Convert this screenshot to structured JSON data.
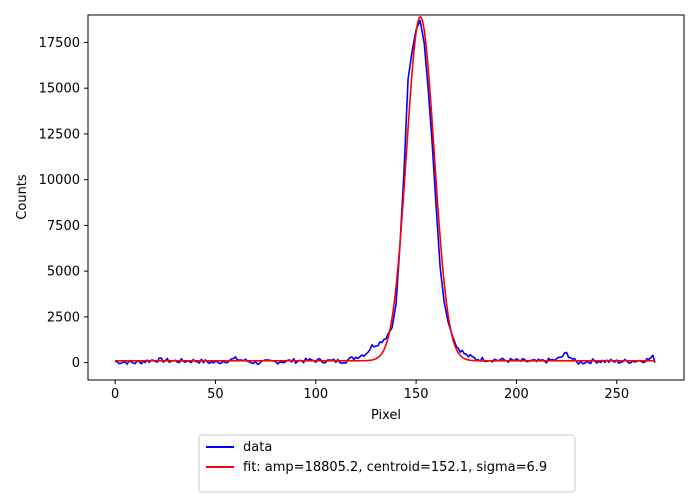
{
  "chart_data": {
    "type": "line",
    "title": "",
    "xlabel": "Pixel",
    "ylabel": "Counts",
    "xlim": [
      -13.5,
      283.5
    ],
    "ylim": [
      -950,
      19000
    ],
    "xticks": [
      0,
      50,
      100,
      150,
      200,
      250
    ],
    "yticks": [
      0,
      2500,
      5000,
      7500,
      10000,
      12500,
      15000,
      17500
    ],
    "grid": false,
    "legend_position": "below-center",
    "series": [
      {
        "name": "data",
        "color": "#0000ff",
        "style": "noisy-profile",
        "x": [
          0,
          10,
          20,
          30,
          40,
          50,
          60,
          70,
          80,
          90,
          100,
          110,
          115,
          120,
          125,
          128,
          132,
          135,
          138,
          140,
          142,
          144,
          146,
          148,
          150,
          152,
          154,
          156,
          158,
          160,
          162,
          164,
          166,
          168,
          170,
          175,
          180,
          190,
          200,
          210,
          220,
          225,
          230,
          240,
          250,
          260,
          265,
          268,
          269
        ],
        "y": [
          50,
          0,
          150,
          80,
          100,
          0,
          200,
          0,
          50,
          100,
          120,
          80,
          100,
          300,
          500,
          900,
          1100,
          1400,
          1900,
          3200,
          6500,
          10500,
          15500,
          17000,
          18200,
          18700,
          17500,
          15000,
          12000,
          8500,
          5200,
          3300,
          2200,
          1500,
          900,
          400,
          200,
          150,
          100,
          50,
          150,
          500,
          0,
          100,
          50,
          100,
          150,
          300,
          100
        ]
      },
      {
        "name": "fit: amp=18805.2, centroid=152.1, sigma=6.9",
        "color": "#ff0000",
        "style": "gaussian",
        "amp": 18805.2,
        "centroid": 152.1,
        "sigma": 6.9,
        "offset": 100,
        "x_range": [
          0,
          269
        ]
      }
    ]
  }
}
